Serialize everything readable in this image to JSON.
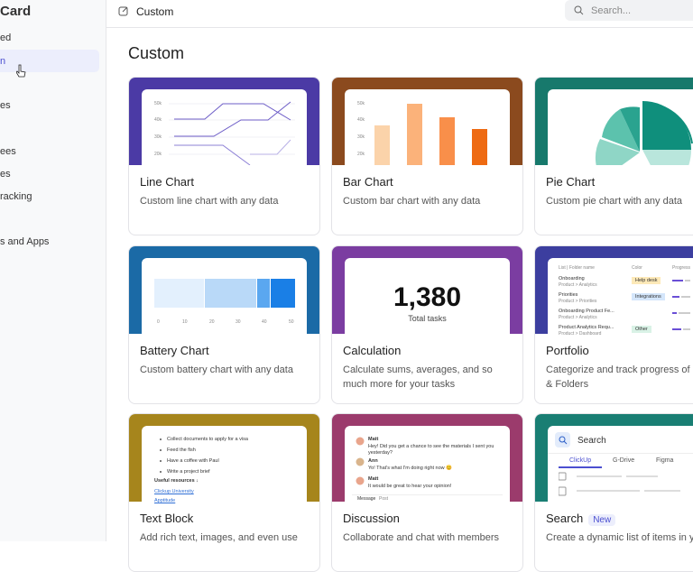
{
  "sidebar": {
    "title": "Card",
    "items": [
      "ed",
      "n",
      "es",
      "ees",
      "es",
      "racking",
      "s and Apps"
    ]
  },
  "topbar": {
    "breadcrumb": "Custom",
    "search_placeholder": "Search..."
  },
  "heading": "Custom",
  "cards": [
    {
      "title": "Line Chart",
      "description": "Custom line chart with any data",
      "preview": {
        "ticks": [
          "50k",
          "40k",
          "30k",
          "20k"
        ]
      }
    },
    {
      "title": "Bar Chart",
      "description": "Custom bar chart with any data",
      "preview": {
        "ticks": [
          "50k",
          "40k",
          "30k",
          "20k"
        ]
      }
    },
    {
      "title": "Pie Chart",
      "description": "Custom pie chart with any data"
    },
    {
      "title": "Battery Chart",
      "description": "Custom battery chart with any data",
      "preview": {
        "ticks": [
          "0",
          "10",
          "20",
          "30",
          "40",
          "50"
        ]
      }
    },
    {
      "title": "Calculation",
      "description": "Calculate sums, averages, and so much more for your tasks",
      "preview": {
        "value": "1,380",
        "label": "Total tasks"
      }
    },
    {
      "title": "Portfolio",
      "description": "Categorize and track progress of\n& Folders",
      "preview": {
        "headers": [
          "List | Folder name",
          "Color",
          "Progress"
        ],
        "rows": [
          {
            "name": "Onboarding",
            "path": "Product > Analytics",
            "tag": "Help desk"
          },
          {
            "name": "Priorities",
            "path": "Product > Priorities",
            "tag": "Integrations"
          },
          {
            "name": "Onboarding Product Fe...",
            "path": "Product > Analytics"
          },
          {
            "name": "Product Analytics Requ...",
            "path": "Product > Dashboard",
            "tag": "Other"
          }
        ]
      }
    },
    {
      "title": "Text Block",
      "description": "Add rich text, images, and even use",
      "preview": {
        "items": [
          "Collect documents to apply for a visa",
          "Feed the fish",
          "Have a coffee with Paul",
          "Write a project brief"
        ],
        "resources": "Useful resources ↓",
        "links": [
          "Clickup University",
          "Apptitude"
        ]
      }
    },
    {
      "title": "Discussion",
      "description": "Collaborate and chat with members",
      "preview": {
        "messages": [
          {
            "author": "Matt",
            "text": "Hey! Did you get a chance to see the materials I sent you yesterday?"
          },
          {
            "author": "Ann",
            "text": "Yo! That's what I'm doing right now 😊"
          },
          {
            "author": "Matt",
            "text": "It would be great to hear your opinion!"
          }
        ],
        "tabs": [
          "Message",
          "Post"
        ]
      }
    },
    {
      "title": "Search",
      "badge": "New",
      "description": "Create a dynamic list of items in y",
      "preview": {
        "search": "Search",
        "tabs": [
          "ClickUp",
          "G-Drive",
          "Figma"
        ]
      }
    }
  ]
}
